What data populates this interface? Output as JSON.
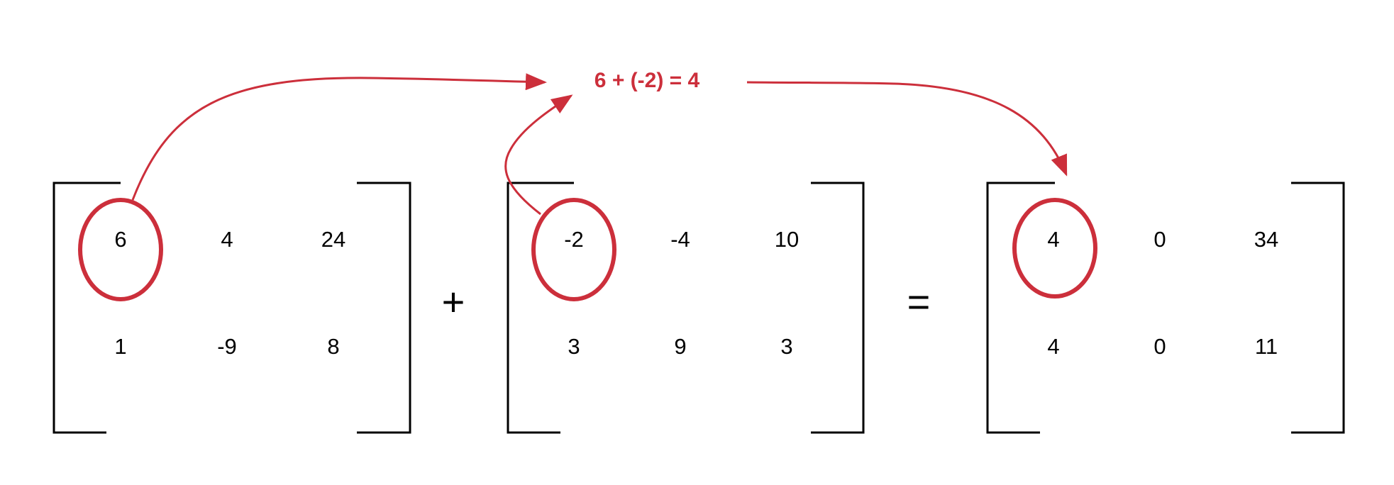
{
  "colors": {
    "highlight": "#cc2f3b",
    "ink": "#000000",
    "background": "#ffffff"
  },
  "matrix_a": {
    "rows": [
      [
        "6",
        "4",
        "24"
      ],
      [
        "1",
        "-9",
        "8"
      ]
    ]
  },
  "matrix_b": {
    "rows": [
      [
        "-2",
        "-4",
        "10"
      ],
      [
        "3",
        "9",
        "3"
      ]
    ]
  },
  "matrix_result": {
    "rows": [
      [
        "4",
        "0",
        "34"
      ],
      [
        "4",
        "0",
        "11"
      ]
    ]
  },
  "operators": {
    "plus": "+",
    "equals": "="
  },
  "calculation": {
    "text": "6 + (-2) = 4"
  }
}
